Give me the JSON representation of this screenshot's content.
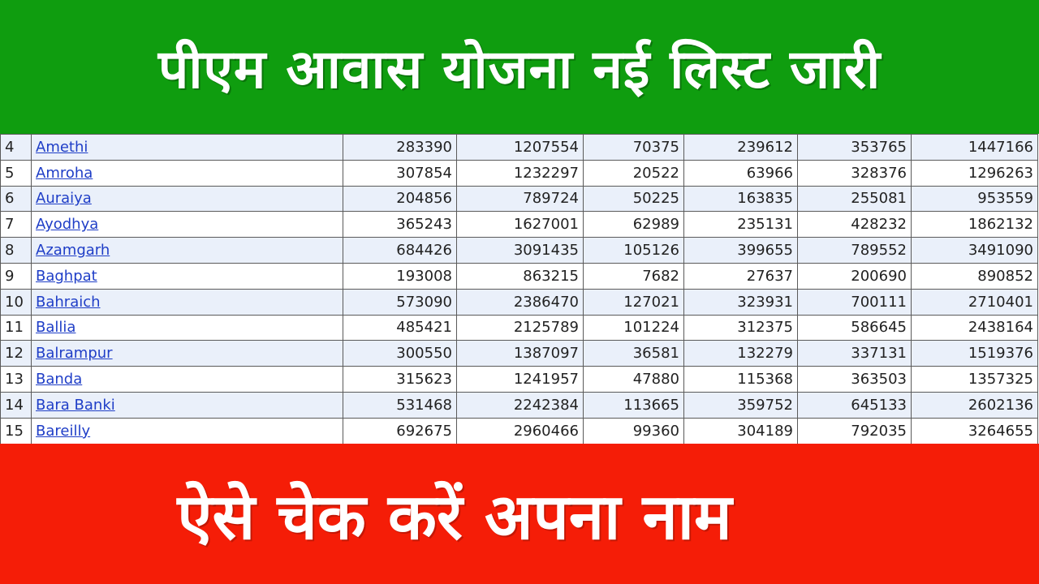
{
  "header": {
    "title": "पीएम आवास योजना नई लिस्ट जारी",
    "bg_color": "#0f9d0f"
  },
  "footer": {
    "title": "ऐसे चेक करें अपना नाम",
    "bg_color": "#f51d07"
  },
  "table": {
    "rows": [
      {
        "sno": "4",
        "district": "Amethi",
        "values": [
          "283390",
          "1207554",
          "70375",
          "239612",
          "353765",
          "1447166"
        ]
      },
      {
        "sno": "5",
        "district": "Amroha",
        "values": [
          "307854",
          "1232297",
          "20522",
          "63966",
          "328376",
          "1296263"
        ]
      },
      {
        "sno": "6",
        "district": "Auraiya",
        "values": [
          "204856",
          "789724",
          "50225",
          "163835",
          "255081",
          "953559"
        ]
      },
      {
        "sno": "7",
        "district": "Ayodhya",
        "values": [
          "365243",
          "1627001",
          "62989",
          "235131",
          "428232",
          "1862132"
        ]
      },
      {
        "sno": "8",
        "district": "Azamgarh",
        "values": [
          "684426",
          "3091435",
          "105126",
          "399655",
          "789552",
          "3491090"
        ]
      },
      {
        "sno": "9",
        "district": "Baghpat",
        "values": [
          "193008",
          "863215",
          "7682",
          "27637",
          "200690",
          "890852"
        ]
      },
      {
        "sno": "10",
        "district": "Bahraich",
        "values": [
          "573090",
          "2386470",
          "127021",
          "323931",
          "700111",
          "2710401"
        ]
      },
      {
        "sno": "11",
        "district": "Ballia",
        "values": [
          "485421",
          "2125789",
          "101224",
          "312375",
          "586645",
          "2438164"
        ]
      },
      {
        "sno": "12",
        "district": "Balrampur",
        "values": [
          "300550",
          "1387097",
          "36581",
          "132279",
          "337131",
          "1519376"
        ]
      },
      {
        "sno": "13",
        "district": "Banda",
        "values": [
          "315623",
          "1241957",
          "47880",
          "115368",
          "363503",
          "1357325"
        ]
      },
      {
        "sno": "14",
        "district": "Bara Banki",
        "values": [
          "531468",
          "2242384",
          "113665",
          "359752",
          "645133",
          "2602136"
        ]
      },
      {
        "sno": "15",
        "district": "Bareilly",
        "values": [
          "692675",
          "2960466",
          "99360",
          "304189",
          "792035",
          "3264655"
        ]
      }
    ]
  }
}
